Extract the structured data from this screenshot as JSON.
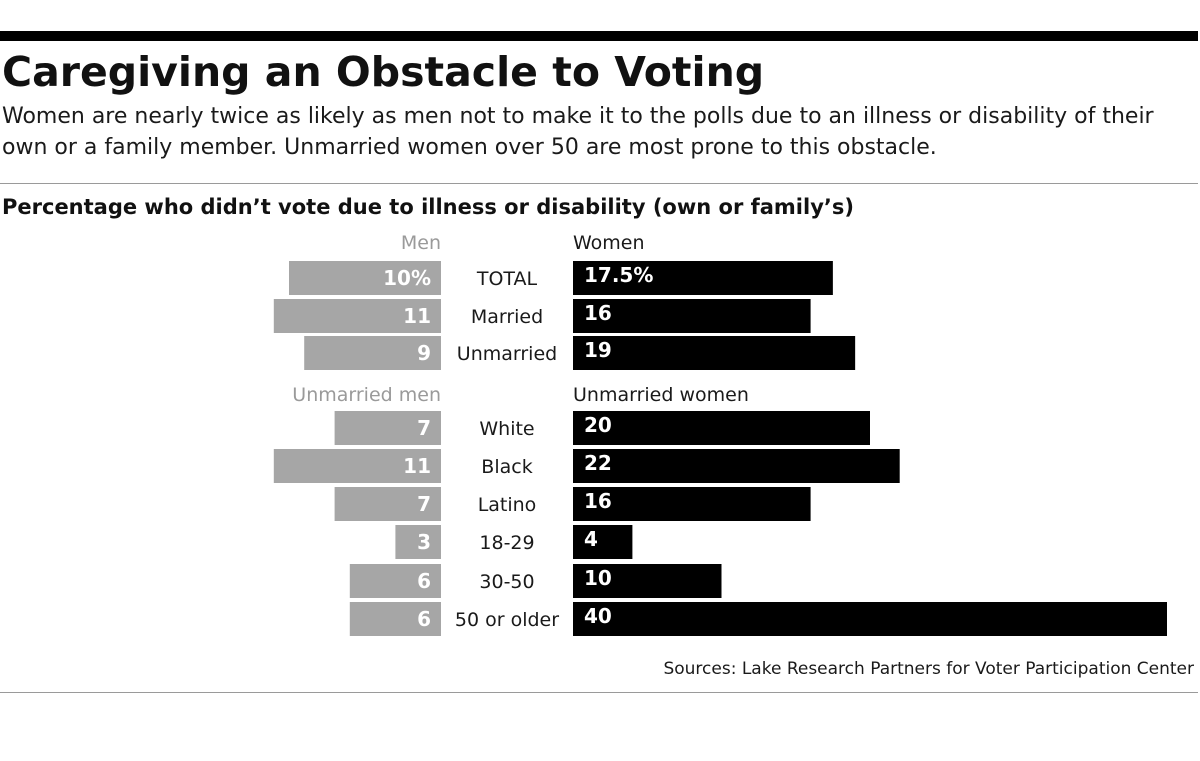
{
  "title": "Caregiving an Obstacle to Voting",
  "subtitle_lines": [
    "Women are nearly twice as likely as men not to make it to the polls due to an illness or disability of their",
    "own or a family member. Unmarried women over 50 are most prone to this obstacle."
  ],
  "chart_heading": "Percentage who didn’t vote  due to illness or disability (own or family’s)",
  "source": "Sources: Lake Research Partners for Voter Participation Center",
  "colors": {
    "men": "#a6a6a6",
    "women": "#000000",
    "rule": "#000000"
  },
  "chart_data": {
    "type": "bar",
    "orientation": "horizontal-diverging",
    "title": "Percentage who didn’t vote  due to illness or disability (own or family’s)",
    "groups": [
      {
        "men_label": "Men",
        "women_label": "Women",
        "rows": [
          {
            "category": "TOTAL",
            "men": 10,
            "men_label": "10%",
            "women": 17.5,
            "women_label": "17.5%"
          },
          {
            "category": "Married",
            "men": 11,
            "men_label": "11",
            "women": 16,
            "women_label": "16"
          },
          {
            "category": "Unmarried",
            "men": 9,
            "men_label": "9",
            "women": 19,
            "women_label": "19"
          }
        ]
      },
      {
        "men_label": "Unmarried men",
        "women_label": "Unmarried women",
        "rows": [
          {
            "category": "White",
            "men": 7,
            "men_label": "7",
            "women": 20,
            "women_label": "20"
          },
          {
            "category": "Black",
            "men": 11,
            "men_label": "11",
            "women": 22,
            "women_label": "22"
          },
          {
            "category": "Latino",
            "men": 7,
            "men_label": "7",
            "women": 16,
            "women_label": "16"
          },
          {
            "category": "18-29",
            "men": 3,
            "men_label": "3",
            "women": 4,
            "women_label": "4"
          },
          {
            "category": "30-50",
            "men": 6,
            "men_label": "6",
            "women": 10,
            "women_label": "10"
          },
          {
            "category": "50 or older",
            "men": 6,
            "men_label": "6",
            "women": 40,
            "women_label": "40"
          }
        ]
      }
    ]
  }
}
